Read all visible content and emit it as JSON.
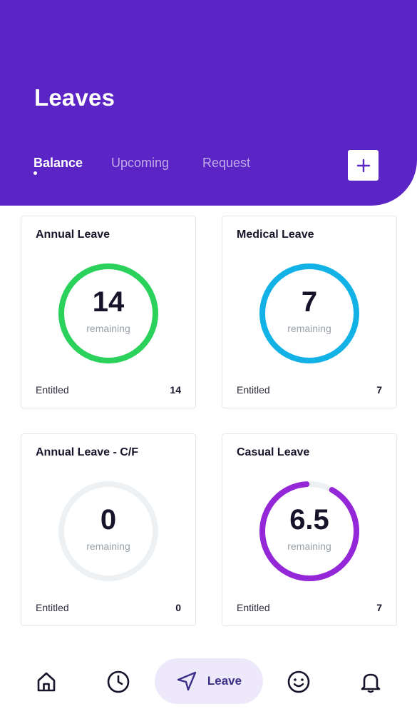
{
  "header": {
    "title": "Leaves",
    "tabs": [
      {
        "label": "Balance",
        "active": true
      },
      {
        "label": "Upcoming",
        "active": false
      },
      {
        "label": "Request",
        "active": false
      }
    ],
    "add_icon": "plus-icon",
    "background_color": "#5b24c4"
  },
  "cards": [
    {
      "title": "Annual Leave",
      "value": "14",
      "remaining_label": "remaining",
      "entitled_label": "Entitled",
      "entitled_value": "14",
      "progress": 1.0,
      "color": "#2ad15a"
    },
    {
      "title": "Medical Leave",
      "value": "7",
      "remaining_label": "remaining",
      "entitled_label": "Entitled",
      "entitled_value": "7",
      "progress": 1.0,
      "color": "#12b2e6"
    },
    {
      "title": "Annual Leave - C/F",
      "value": "0",
      "remaining_label": "remaining",
      "entitled_label": "Entitled",
      "entitled_value": "0",
      "progress": 0.0,
      "color": "#eef1f4"
    },
    {
      "title": "Casual Leave",
      "value": "6.5",
      "remaining_label": "remaining",
      "entitled_label": "Entitled",
      "entitled_value": "7",
      "progress": 0.93,
      "color": "#9427d8"
    }
  ],
  "bottom_nav": {
    "items": [
      {
        "icon": "home-icon"
      },
      {
        "icon": "clock-icon"
      },
      {
        "icon": "send-icon",
        "label": "Leave",
        "active": true
      },
      {
        "icon": "smile-icon"
      },
      {
        "icon": "bell-icon"
      }
    ]
  },
  "colors": {
    "accent": "#5b24c4",
    "track": "#eef1f4",
    "active_nav_bg": "#ede9fb"
  }
}
